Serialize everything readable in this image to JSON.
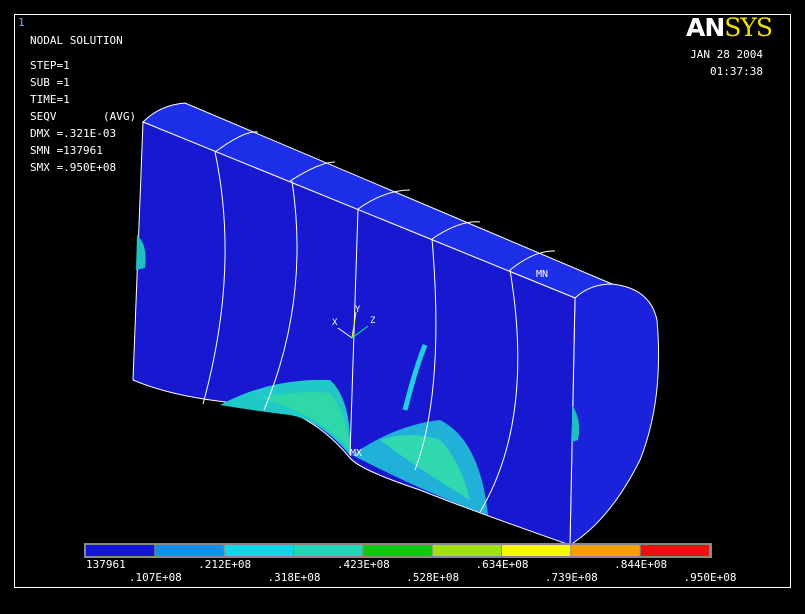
{
  "window_number": "1",
  "info": {
    "title": "NODAL SOLUTION",
    "lines": [
      "STEP=1",
      "SUB =1",
      "TIME=1"
    ],
    "result": "SEQV",
    "result_avg": "(AVG)",
    "stats": [
      "DMX =.321E-03",
      "SMN =137961",
      "SMX =.950E+08"
    ]
  },
  "logo": [
    "AN",
    "SYS"
  ],
  "date": "JAN 28 2004",
  "time": "01:37:38",
  "markers": {
    "min": "MN",
    "max": "MX"
  },
  "triad": {
    "x": "X",
    "y": "Y",
    "z": "Z"
  },
  "legend": {
    "colors": [
      "#1515d8",
      "#1590e8",
      "#10d8e8",
      "#20d8b8",
      "#10c810",
      "#a0e010",
      "#f8f800",
      "#f8a000",
      "#e81010"
    ],
    "labels": [
      "137961",
      ".107E+08",
      ".212E+08",
      ".318E+08",
      ".423E+08",
      ".528E+08",
      ".634E+08",
      ".739E+08",
      ".844E+08",
      ".950E+08"
    ]
  }
}
